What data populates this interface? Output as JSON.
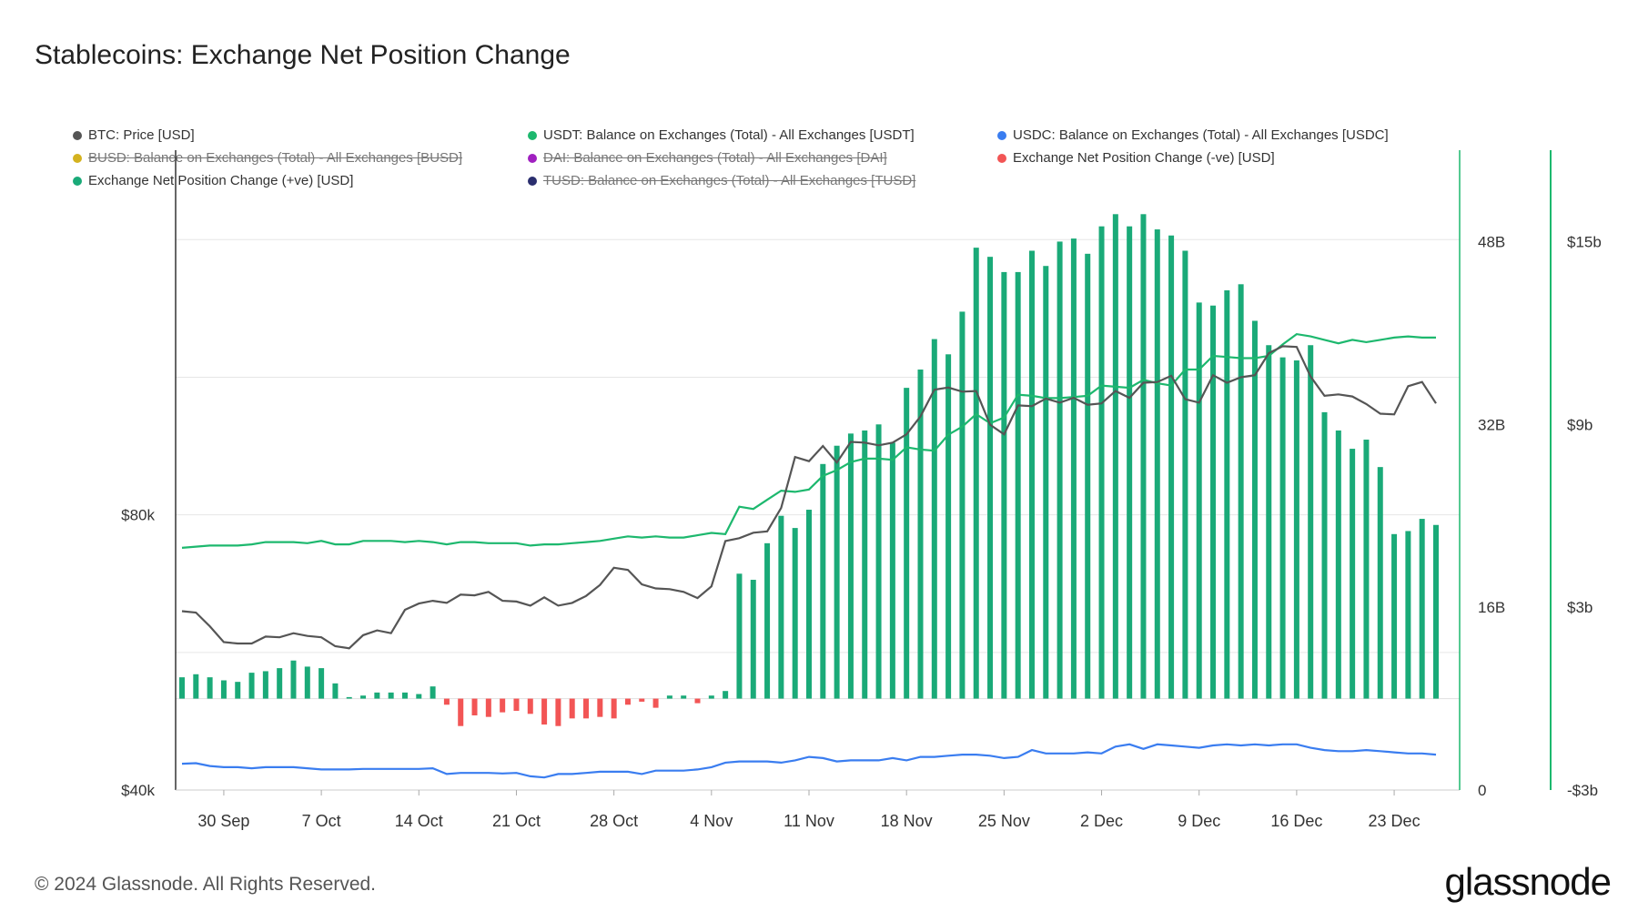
{
  "header": {
    "title": "Stablecoins: Exchange Net Position Change"
  },
  "footer": {
    "copyright": "© 2024 Glassnode. All Rights Reserved.",
    "logo": "glassnode"
  },
  "legend": [
    {
      "label": "BTC: Price [USD]",
      "color": "#555555",
      "hidden": false
    },
    {
      "label": "USDT: Balance on Exchanges (Total) - All Exchanges [USDT]",
      "color": "#1db86e",
      "hidden": false
    },
    {
      "label": "USDC: Balance on Exchanges (Total) - All Exchanges [USDC]",
      "color": "#3a7df0",
      "hidden": false
    },
    {
      "label": "BUSD: Balance on Exchanges (Total) - All Exchanges [BUSD]",
      "color": "#d4b21f",
      "hidden": true
    },
    {
      "label": "DAI: Balance on Exchanges (Total) - All Exchanges [DAI]",
      "color": "#a020c0",
      "hidden": true
    },
    {
      "label": "Exchange Net Position Change (-ve) [USD]",
      "color": "#f25555",
      "hidden": false
    },
    {
      "label": "Exchange Net Position Change (+ve) [USD]",
      "color": "#1aaa78",
      "hidden": false
    },
    {
      "label": "TUSD: Balance on Exchanges (Total) - All Exchanges [TUSD]",
      "color": "#2a2e6e",
      "hidden": true
    }
  ],
  "colors": {
    "btc": "#555555",
    "usdt": "#1db86e",
    "usdc": "#3a7df0",
    "pos": "#1aaa78",
    "neg": "#f25555",
    "grid": "#e6e6e6",
    "axis": "#1db86e"
  },
  "chart_data": {
    "type": "line+bar",
    "title": "Stablecoins: Exchange Net Position Change",
    "start_date": "2024-09-27",
    "x_tick_labels": [
      "30 Sep",
      "7 Oct",
      "14 Oct",
      "21 Oct",
      "28 Oct",
      "4 Nov",
      "11 Nov",
      "18 Nov",
      "25 Nov",
      "2 Dec",
      "9 Dec",
      "16 Dec",
      "23 Dec"
    ],
    "axes": {
      "btc_price": {
        "ticks": [
          "$40k",
          "$80k"
        ],
        "range": [
          40000,
          133000
        ]
      },
      "balance": {
        "ticks": [
          "0",
          "16B",
          "32B",
          "48B"
        ],
        "range": [
          0,
          56000000000
        ]
      },
      "net_change": {
        "ticks": [
          "-$3b",
          "$3b",
          "$9b",
          "$15b"
        ],
        "range": [
          -3000000000,
          18000000000
        ]
      }
    },
    "series": [
      {
        "name": "BTC: Price [USD]",
        "axis": "btc_price",
        "values": [
          66000,
          65800,
          63800,
          61500,
          61300,
          61300,
          62300,
          62200,
          62800,
          62400,
          62200,
          60900,
          60600,
          62500,
          63200,
          62800,
          66200,
          67100,
          67500,
          67200,
          68400,
          68300,
          68800,
          67500,
          67400,
          66800,
          68000,
          66800,
          67200,
          68200,
          69800,
          72300,
          72000,
          69900,
          69300,
          69200,
          68800,
          67900,
          69600,
          76200,
          76600,
          77400,
          77600,
          81000,
          88400,
          87800,
          90000,
          87600,
          90600,
          90500,
          90100,
          90500,
          91700,
          94300,
          98200,
          98500,
          97900,
          98000,
          93100,
          91700,
          95900,
          95800,
          96900,
          96300,
          97000,
          96000,
          96200,
          98000,
          97000,
          99200,
          99300,
          100200,
          96800,
          96300,
          100300,
          99200,
          100000,
          100300,
          103500,
          104500,
          104400,
          100100,
          97300,
          97500,
          97200,
          96100,
          94700,
          94600,
          98700,
          99300,
          96200
        ]
      },
      {
        "name": "USDT: Balance on Exchanges (Total) - All Exchanges [USDT]",
        "axis": "balance",
        "values": [
          21200000000.0,
          21300000000.0,
          21400000000.0,
          21400000000.0,
          21400000000.0,
          21500000000.0,
          21700000000.0,
          21700000000.0,
          21700000000.0,
          21600000000.0,
          21800000000.0,
          21500000000.0,
          21500000000.0,
          21800000000.0,
          21800000000.0,
          21800000000.0,
          21700000000.0,
          21800000000.0,
          21700000000.0,
          21500000000.0,
          21700000000.0,
          21700000000.0,
          21600000000.0,
          21600000000.0,
          21600000000.0,
          21400000000.0,
          21500000000.0,
          21500000000.0,
          21600000000.0,
          21700000000.0,
          21800000000.0,
          22000000000.0,
          22200000000.0,
          22100000000.0,
          22200000000.0,
          22100000000.0,
          22100000000.0,
          22300000000.0,
          22500000000.0,
          22400000000.0,
          24800000000.0,
          24600000000.0,
          25400000000.0,
          26200000000.0,
          26100000000.0,
          26300000000.0,
          27500000000.0,
          28000000000.0,
          28700000000.0,
          29000000000.0,
          29000000000.0,
          28900000000.0,
          30000000000.0,
          29800000000.0,
          29700000000.0,
          31100000000.0,
          31800000000.0,
          32900000000.0,
          32100000000.0,
          32600000000.0,
          34600000000.0,
          34500000000.0,
          34300000000.0,
          34300000000.0,
          34400000000.0,
          34500000000.0,
          35400000000.0,
          35300000000.0,
          35200000000.0,
          35900000000.0,
          35600000000.0,
          35400000000.0,
          36800000000.0,
          36800000000.0,
          38000000000.0,
          37900000000.0,
          37800000000.0,
          37800000000.0,
          38000000000.0,
          39000000000.0,
          39900000000.0,
          39700000000.0,
          39400000000.0,
          39100000000.0,
          39400000000.0,
          39200000000.0,
          39400000000.0,
          39600000000.0,
          39700000000.0,
          39600000000.0,
          39600000000.0
        ]
      },
      {
        "name": "USDC: Balance on Exchanges (Total) - All Exchanges [USDC]",
        "axis": "balance",
        "values": [
          2300000000.0,
          2350000000.0,
          2100000000.0,
          2000000000.0,
          2000000000.0,
          1900000000.0,
          2000000000.0,
          2000000000.0,
          2000000000.0,
          1900000000.0,
          1800000000.0,
          1800000000.0,
          1800000000.0,
          1850000000.0,
          1850000000.0,
          1850000000.0,
          1850000000.0,
          1850000000.0,
          1900000000.0,
          1400000000.0,
          1500000000.0,
          1500000000.0,
          1500000000.0,
          1450000000.0,
          1500000000.0,
          1200000000.0,
          1100000000.0,
          1400000000.0,
          1400000000.0,
          1500000000.0,
          1600000000.0,
          1600000000.0,
          1600000000.0,
          1400000000.0,
          1700000000.0,
          1700000000.0,
          1700000000.0,
          1800000000.0,
          2000000000.0,
          2400000000.0,
          2500000000.0,
          2500000000.0,
          2500000000.0,
          2400000000.0,
          2600000000.0,
          2900000000.0,
          2800000000.0,
          2500000000.0,
          2600000000.0,
          2600000000.0,
          2600000000.0,
          2800000000.0,
          2600000000.0,
          2900000000.0,
          2900000000.0,
          3000000000.0,
          3100000000.0,
          3100000000.0,
          3000000000.0,
          2800000000.0,
          2900000000.0,
          3500000000.0,
          3200000000.0,
          3200000000.0,
          3200000000.0,
          3300000000.0,
          3200000000.0,
          3800000000.0,
          4000000000.0,
          3600000000.0,
          4000000000.0,
          3900000000.0,
          3800000000.0,
          3700000000.0,
          3900000000.0,
          4000000000.0,
          3900000000.0,
          4000000000.0,
          3900000000.0,
          4000000000.0,
          4000000000.0,
          3700000000.0,
          3500000000.0,
          3400000000.0,
          3400000000.0,
          3500000000.0,
          3400000000.0,
          3300000000.0,
          3200000000.0,
          3200000000.0,
          3100000000.0
        ]
      },
      {
        "name": "Exchange Net Position Change [USD]",
        "axis": "net_change",
        "values": [
          700000000.0,
          800000000.0,
          700000000.0,
          600000000.0,
          550000000.0,
          850000000.0,
          900000000.0,
          1000000000.0,
          1250000000.0,
          1050000000.0,
          1000000000.0,
          500000000.0,
          50000000.0,
          100000000.0,
          200000000.0,
          200000000.0,
          200000000.0,
          150000000.0,
          400000000.0,
          -200000000.0,
          -900000000.0,
          -550000000.0,
          -600000000.0,
          -450000000.0,
          -400000000.0,
          -500000000.0,
          -850000000.0,
          -900000000.0,
          -650000000.0,
          -650000000.0,
          -600000000.0,
          -650000000.0,
          -200000000.0,
          -100000000.0,
          -300000000.0,
          100000000.0,
          100000000.0,
          -150000000.0,
          100000000.0,
          250000000.0,
          4100000000.0,
          3900000000.0,
          5100000000.0,
          6000000000.0,
          5600000000.0,
          6200000000.0,
          7700000000.0,
          8300000000.0,
          8700000000.0,
          8800000000.0,
          9000000000.0,
          8400000000.0,
          10200000000.0,
          10800000000.0,
          11800000000.0,
          11300000000.0,
          12700000000.0,
          14800000000.0,
          14500000000.0,
          14000000000.0,
          14000000000.0,
          14700000000.0,
          14200000000.0,
          15000000000.0,
          15100000000.0,
          14600000000.0,
          15500000000.0,
          15900000000.0,
          15500000000.0,
          15900000000.0,
          15400000000.0,
          15200000000.0,
          14700000000.0,
          13000000000.0,
          12900000000.0,
          13400000000.0,
          13600000000.0,
          12400000000.0,
          11600000000.0,
          11200000000.0,
          11100000000.0,
          11600000000.0,
          9400000000.0,
          8800000000.0,
          8200000000.0,
          8500000000.0,
          7600000000.0,
          5400000000.0,
          5500000000.0,
          5900000000.0,
          5700000000.0
        ]
      }
    ]
  }
}
